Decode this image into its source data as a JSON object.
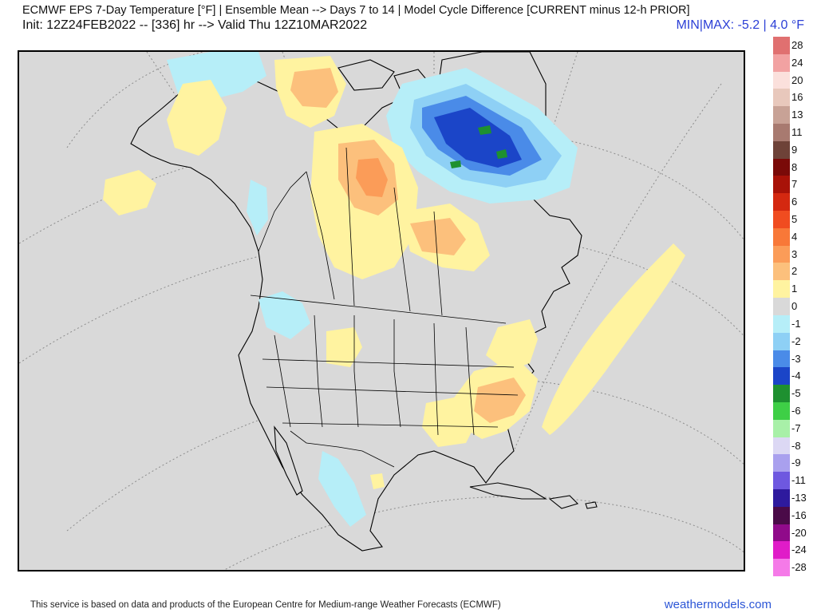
{
  "header": {
    "title": "ECMWF EPS 7-Day Temperature [°F] | Ensemble Mean --> Days 7 to 14 | Model Cycle Difference [CURRENT minus 12-h PRIOR]",
    "init_valid": "Init: 12Z24FEB2022 -- [336] hr --> Valid Thu 12Z10MAR2022",
    "minmax": "MIN|MAX: -5.2 | 4.0 °F"
  },
  "legend": {
    "items": [
      {
        "label": "28",
        "color": "#e07070"
      },
      {
        "label": "24",
        "color": "#f2a2a2"
      },
      {
        "label": "20",
        "color": "#fbe0dc"
      },
      {
        "label": "16",
        "color": "#e8c8bc"
      },
      {
        "label": "13",
        "color": "#c8a296"
      },
      {
        "label": "11",
        "color": "#a87a70"
      },
      {
        "label": "9",
        "color": "#6e4238"
      },
      {
        "label": "8",
        "color": "#7a0a08"
      },
      {
        "label": "7",
        "color": "#a81208"
      },
      {
        "label": "6",
        "color": "#d42810"
      },
      {
        "label": "5",
        "color": "#f04c20"
      },
      {
        "label": "4",
        "color": "#f87838"
      },
      {
        "label": "3",
        "color": "#fb9c58"
      },
      {
        "label": "2",
        "color": "#fcc07c"
      },
      {
        "label": "1",
        "color": "#fff3a0"
      },
      {
        "label": "0",
        "color": "#d9d9d9"
      },
      {
        "label": "-1",
        "color": "#b6eef8"
      },
      {
        "label": "-2",
        "color": "#8ed0f5"
      },
      {
        "label": "-3",
        "color": "#4a8be8"
      },
      {
        "label": "-4",
        "color": "#1b45c8"
      },
      {
        "label": "-5",
        "color": "#1e9030"
      },
      {
        "label": "-6",
        "color": "#3ecf46"
      },
      {
        "label": "-7",
        "color": "#a8f0a8"
      },
      {
        "label": "-8",
        "color": "#dcd8f4"
      },
      {
        "label": "-9",
        "color": "#a9a0ee"
      },
      {
        "label": "-11",
        "color": "#6e58e0"
      },
      {
        "label": "-13",
        "color": "#2e1a9e"
      },
      {
        "label": "-16",
        "color": "#4a0a48"
      },
      {
        "label": "-20",
        "color": "#900a8a"
      },
      {
        "label": "-24",
        "color": "#e01cc8"
      },
      {
        "label": "-28",
        "color": "#f57ae8"
      }
    ]
  },
  "footer": {
    "credit": "This service is based on data and products of the European Centre for Medium-range Weather Forecasts (ECMWF)",
    "site": "weathermodels.com"
  }
}
